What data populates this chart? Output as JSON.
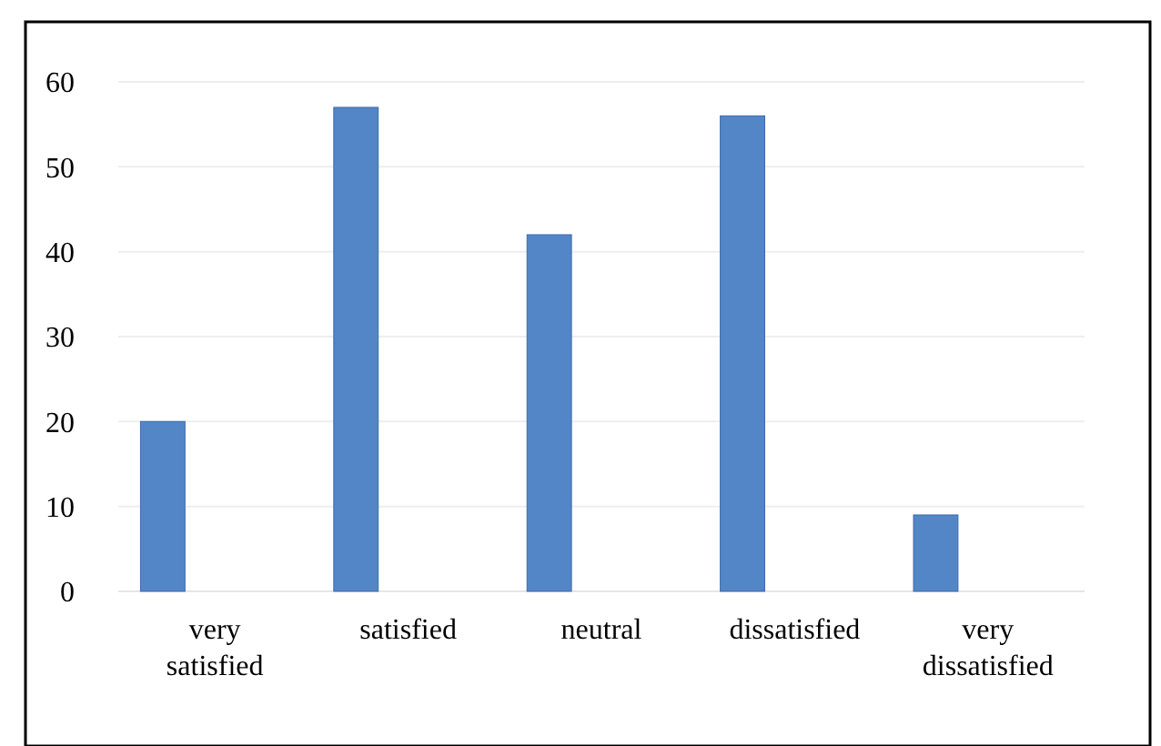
{
  "chart_data": {
    "type": "bar",
    "categories": [
      "very satisfied",
      "satisfied",
      "neutral",
      "dissatisfied",
      "very dissatisfied"
    ],
    "values": [
      20,
      57,
      42,
      56,
      9
    ],
    "color": "#4a7fc4",
    "ylim": [
      0,
      60
    ],
    "yticks": [
      0,
      10,
      20,
      30,
      40,
      50,
      60
    ],
    "grid": "y"
  }
}
